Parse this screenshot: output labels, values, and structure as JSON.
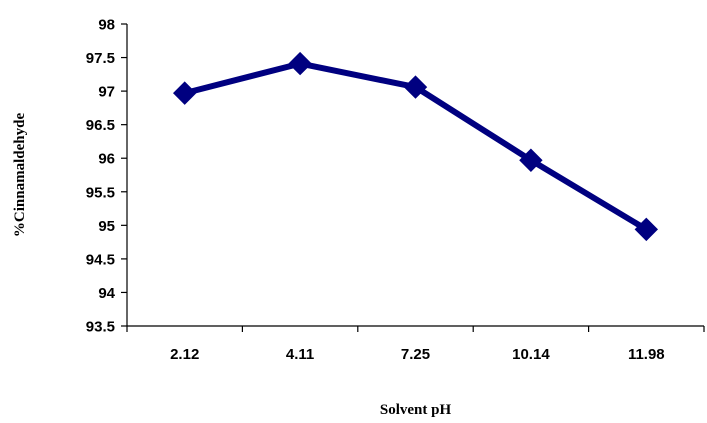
{
  "chart_data": {
    "type": "line",
    "title": "",
    "xlabel": "Solvent pH",
    "ylabel": "%Cinnamaldehyde",
    "categories": [
      "2.12",
      "4.11",
      "7.25",
      "10.14",
      "11.98"
    ],
    "series": [
      {
        "values": [
          96.97,
          97.41,
          97.06,
          95.97,
          94.94
        ],
        "color": "#000080",
        "marker": "diamond"
      }
    ],
    "ylim": [
      93.5,
      98
    ],
    "yticks": [
      "93.5",
      "94",
      "94.5",
      "95",
      "95.5",
      "96",
      "96.5",
      "97",
      "97.5",
      "98"
    ],
    "grid": false,
    "legend": "none"
  }
}
